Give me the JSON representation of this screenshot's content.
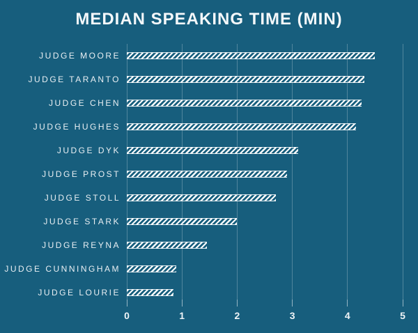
{
  "chart_data": {
    "type": "bar",
    "orientation": "horizontal",
    "title": "MEDIAN SPEAKING TIME (MIN)",
    "categories": [
      "JUDGE MOORE",
      "JUDGE TARANTO",
      "JUDGE CHEN",
      "JUDGE HUGHES",
      "JUDGE DYK",
      "JUDGE PROST",
      "JUDGE STOLL",
      "JUDGE STARK",
      "JUDGE REYNA",
      "JUDGE CUNNINGHAM",
      "JUDGE LOURIE"
    ],
    "values": [
      4.5,
      4.3,
      4.25,
      4.15,
      3.1,
      2.9,
      2.7,
      2.0,
      1.45,
      0.9,
      0.85
    ],
    "xlabel": "",
    "ylabel": "",
    "xlim": [
      0,
      5
    ],
    "x_ticks": [
      "0",
      "1",
      "2",
      "3",
      "4",
      "5"
    ],
    "grid": true,
    "legend": "none",
    "bar_style": "diagonal-hatch",
    "colors": {
      "background": "#175E7D",
      "bar_hatch": "#FAFCFD",
      "title_text": "#F4F8FA",
      "label_text": "#E9EFF3",
      "gridline": "rgba(255,255,255,0.25)",
      "tick": "rgba(255,255,255,0.55)"
    }
  }
}
